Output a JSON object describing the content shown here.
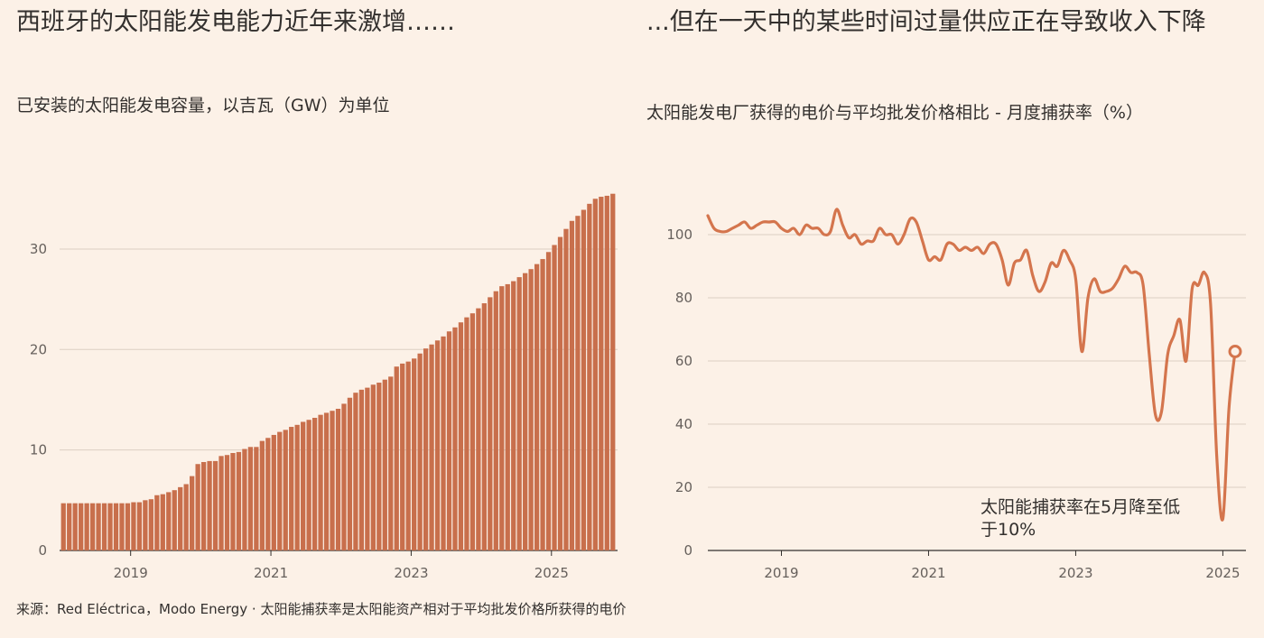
{
  "left_panel": {
    "title": "西班牙的太阳能发电能力近年来激增……",
    "subtitle": "已安装的太阳能发电容量，以吉瓦（GW）为单位"
  },
  "right_panel": {
    "title": "...但在一天中的某些时间过量供应正在导致收入下降",
    "subtitle": "太阳能发电厂获得的电价与平均批发价格相比 - 月度捕获率（%）",
    "annotation": "太阳能捕获率在5月降至低于10%"
  },
  "footer": "来源：Red Eléctrica，Modo Energy · 太阳能捕获率是太阳能资产相对于平均批发价格所获得的电价",
  "colors": {
    "background": "#fcf1e7",
    "bar": "#c86f4c",
    "line": "#d4754d",
    "grid": "#dccfc3"
  },
  "chart_data": [
    {
      "type": "bar",
      "xlabel": "",
      "ylabel": "",
      "ylim": [
        0,
        37
      ],
      "yticks": [
        0,
        10,
        20,
        30
      ],
      "xticks": [
        "2019",
        "2021",
        "2023",
        "2025"
      ],
      "x_start": "2018-01",
      "frequency": "monthly",
      "values": [
        4.7,
        4.7,
        4.7,
        4.7,
        4.7,
        4.7,
        4.7,
        4.7,
        4.7,
        4.7,
        4.7,
        4.7,
        4.8,
        4.8,
        5.0,
        5.1,
        5.5,
        5.6,
        5.8,
        6.0,
        6.3,
        6.6,
        7.4,
        8.6,
        8.8,
        8.9,
        8.9,
        9.4,
        9.5,
        9.7,
        9.8,
        10.1,
        10.3,
        10.3,
        10.9,
        11.2,
        11.5,
        11.8,
        12.0,
        12.3,
        12.5,
        12.8,
        13.0,
        13.2,
        13.5,
        13.7,
        13.9,
        14.1,
        14.6,
        15.2,
        15.7,
        16.0,
        16.2,
        16.5,
        16.7,
        17.0,
        17.3,
        18.3,
        18.6,
        18.8,
        19.1,
        19.6,
        20.1,
        20.5,
        20.9,
        21.3,
        21.8,
        22.2,
        22.7,
        23.2,
        23.6,
        24.1,
        24.6,
        25.2,
        25.8,
        26.3,
        26.5,
        26.8,
        27.2,
        27.6,
        28.0,
        28.5,
        29.0,
        29.7,
        30.4,
        31.2,
        32.0,
        32.8,
        33.3,
        33.9,
        34.5,
        35.0,
        35.2,
        35.3,
        35.5
      ]
    },
    {
      "type": "line",
      "xlabel": "",
      "ylabel": "",
      "ylim": [
        0,
        110
      ],
      "yticks": [
        0,
        20,
        40,
        60,
        80,
        100
      ],
      "xticks": [
        "2019",
        "2021",
        "2023",
        "2025"
      ],
      "x_start": "2018-01",
      "frequency": "monthly",
      "values": [
        106,
        102,
        101,
        101,
        102,
        103,
        104,
        102,
        103,
        104,
        104,
        104,
        102,
        101,
        102,
        100,
        103,
        102,
        102,
        100,
        101,
        108,
        103,
        99,
        100,
        97,
        98,
        98,
        102,
        100,
        100,
        97,
        100,
        105,
        104,
        98,
        92,
        93,
        92,
        97,
        97,
        95,
        96,
        95,
        96,
        94,
        97,
        97,
        92,
        84,
        91,
        92,
        95,
        87,
        82,
        85,
        91,
        90,
        95,
        92,
        86,
        63,
        80,
        86,
        82,
        82,
        83,
        86,
        90,
        88,
        88,
        84,
        62,
        43,
        44,
        62,
        68,
        73,
        60,
        83,
        84,
        88,
        78,
        30,
        10,
        45,
        63
      ]
    }
  ]
}
